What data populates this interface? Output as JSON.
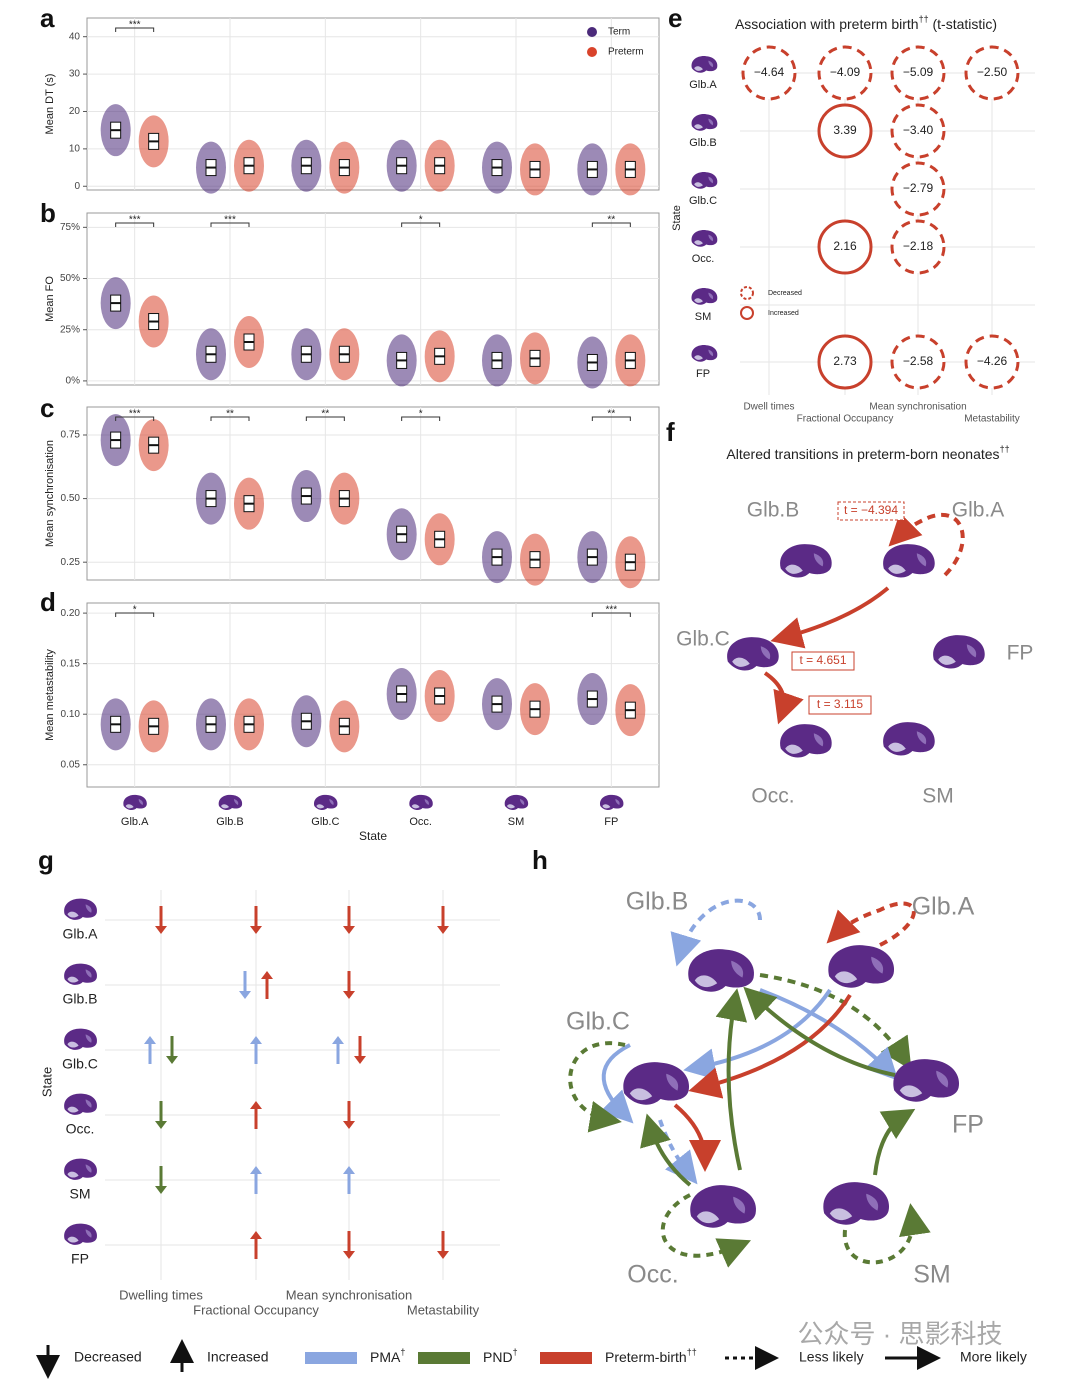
{
  "panel_letters": [
    "a",
    "b",
    "c",
    "d",
    "e",
    "f",
    "g",
    "h"
  ],
  "chart_data": [
    {
      "type": "box",
      "ylabel": "Mean DT (s)",
      "ylim": [
        -1,
        45
      ],
      "yticks": [
        0,
        10,
        20,
        30,
        40
      ],
      "series": [
        {
          "name": "Term",
          "color": "#4b2a7a",
          "values": [
            15,
            5,
            5.5,
            5.5,
            5,
            4.5
          ]
        },
        {
          "name": "Preterm",
          "color": "#d9432b",
          "values": [
            12,
            5.5,
            5,
            5.5,
            4.5,
            4.5
          ]
        }
      ],
      "significance": [
        "***",
        null,
        null,
        null,
        null,
        null
      ]
    },
    {
      "type": "box",
      "ylabel": "Mean FO",
      "ylim": [
        -2,
        82
      ],
      "yticks": [
        {
          "value": 0,
          "label": "0%"
        },
        {
          "value": 25,
          "label": "25%"
        },
        {
          "value": 50,
          "label": "50%"
        },
        {
          "value": 75,
          "label": "75%"
        }
      ],
      "series": [
        {
          "color": "#4b2a7a",
          "values": [
            38,
            13,
            13,
            10,
            10,
            9
          ]
        },
        {
          "color": "#d9432b",
          "values": [
            29,
            19,
            13,
            12,
            11,
            10
          ]
        }
      ],
      "significance": [
        "***",
        "***",
        null,
        "*",
        null,
        "**"
      ]
    },
    {
      "type": "box",
      "ylabel": "Mean synchronisation",
      "ylim": [
        0.18,
        0.86
      ],
      "yticks": [
        0.25,
        {
          "value": 0.5,
          "label": "0.50"
        },
        0.75
      ],
      "series": [
        {
          "color": "#4b2a7a",
          "values": [
            0.73,
            0.5,
            0.51,
            0.36,
            0.27,
            0.27
          ]
        },
        {
          "color": "#d9432b",
          "values": [
            0.71,
            0.48,
            0.5,
            0.34,
            0.26,
            0.25
          ]
        }
      ],
      "significance": [
        "***",
        "**",
        "**",
        "*",
        null,
        "**"
      ]
    },
    {
      "type": "box",
      "ylabel": "Mean metastability",
      "ylim": [
        0.028,
        0.21
      ],
      "yticks": [
        0.05,
        {
          "value": 0.1,
          "label": "0.10"
        },
        0.15,
        {
          "value": 0.2,
          "label": "0.20"
        }
      ],
      "categories": [
        "Glb.A",
        "Glb.B",
        "Glb.C",
        "Occ.",
        "SM",
        "FP"
      ],
      "xlabel": "State",
      "series": [
        {
          "color": "#4b2a7a",
          "values": [
            0.09,
            0.09,
            0.093,
            0.12,
            0.11,
            0.115
          ]
        },
        {
          "color": "#d9432b",
          "values": [
            0.088,
            0.09,
            0.088,
            0.118,
            0.105,
            0.104
          ]
        }
      ],
      "significance": [
        "*",
        null,
        null,
        null,
        null,
        "***"
      ]
    }
  ],
  "panel_e": {
    "title": "Association with preterm birth",
    "title_sup": "††",
    "title_suffix": " (t-statistic)",
    "ylabel": "State",
    "states": [
      "Glb.A",
      "Glb.B",
      "Glb.C",
      "Occ.",
      "SM",
      "FP"
    ],
    "measures": [
      "Dwell times",
      "Fractional Occupancy",
      "Mean synchronisation",
      "Metastability"
    ],
    "legend": [
      "Decreased",
      "Increased"
    ],
    "cells": [
      [
        {
          "value": -4.64,
          "label": "−4.64"
        },
        {
          "value": -4.09,
          "label": "−4.09"
        },
        {
          "value": -5.09,
          "label": "−5.09"
        },
        {
          "value": -2.5,
          "label": "−2.50"
        }
      ],
      [
        null,
        {
          "value": 3.39,
          "label": "3.39"
        },
        {
          "value": -3.4,
          "label": "−3.40"
        },
        null
      ],
      [
        null,
        null,
        {
          "value": -2.79,
          "label": "−2.79"
        },
        null
      ],
      [
        null,
        {
          "value": 2.16,
          "label": "2.16"
        },
        {
          "value": -2.18,
          "label": "−2.18"
        },
        null
      ],
      [
        null,
        null,
        null,
        null
      ],
      [
        null,
        {
          "value": 2.73,
          "label": "2.73"
        },
        {
          "value": -2.58,
          "label": "−2.58"
        },
        {
          "value": -4.26,
          "label": "−4.26"
        }
      ]
    ]
  },
  "panel_f": {
    "title": "Altered transitions in preterm-born neonates",
    "title_sup": "††",
    "nodes": [
      "Glb.B",
      "Glb.A",
      "Glb.C",
      "FP",
      "Occ.",
      "SM"
    ],
    "edges": [
      "t = −4.394",
      "t = 4.651",
      "t = 3.115"
    ]
  },
  "panel_g": {
    "ylabel": "State",
    "states": [
      "Glb.A",
      "Glb.B",
      "Glb.C",
      "Occ.",
      "SM",
      "FP"
    ],
    "measures": [
      "Dwelling times",
      "Fractional Occupancy",
      "Mean synchronisation",
      "Metastability"
    ],
    "arrows": [
      [
        [
          {
            "dir": "down",
            "color": "#c8402c"
          }
        ],
        [
          {
            "dir": "down",
            "color": "#c8402c"
          }
        ],
        [
          {
            "dir": "down",
            "color": "#c8402c"
          }
        ],
        [
          {
            "dir": "down",
            "color": "#c8402c"
          }
        ]
      ],
      [
        [],
        [
          {
            "dir": "down",
            "color": "#8aa6e0"
          },
          {
            "dir": "up",
            "color": "#c8402c"
          }
        ],
        [
          {
            "dir": "down",
            "color": "#c8402c"
          }
        ],
        []
      ],
      [
        [
          {
            "dir": "up",
            "color": "#8aa6e0"
          },
          {
            "dir": "down",
            "color": "#5a7a35"
          }
        ],
        [
          {
            "dir": "up",
            "color": "#8aa6e0"
          }
        ],
        [
          {
            "dir": "up",
            "color": "#8aa6e0"
          },
          {
            "dir": "down",
            "color": "#c8402c"
          }
        ],
        []
      ],
      [
        [
          {
            "dir": "down",
            "color": "#5a7a35"
          }
        ],
        [
          {
            "dir": "up",
            "color": "#c8402c"
          }
        ],
        [
          {
            "dir": "down",
            "color": "#c8402c"
          }
        ],
        []
      ],
      [
        [
          {
            "dir": "down",
            "color": "#5a7a35"
          }
        ],
        [
          {
            "dir": "up",
            "color": "#8aa6e0"
          }
        ],
        [
          {
            "dir": "up",
            "color": "#8aa6e0"
          }
        ],
        []
      ],
      [
        [],
        [
          {
            "dir": "up",
            "color": "#c8402c"
          }
        ],
        [
          {
            "dir": "down",
            "color": "#c8402c"
          }
        ],
        [
          {
            "dir": "down",
            "color": "#c8402c"
          }
        ]
      ]
    ]
  },
  "panel_h": {
    "nodes": [
      "Glb.B",
      "Glb.A",
      "Glb.C",
      "FP",
      "Occ.",
      "SM"
    ]
  },
  "legend": {
    "decreased": "Decreased",
    "increased": "Increased",
    "pma": "PMA",
    "pma_sup": "†",
    "pnd": "PND",
    "pnd_sup": "†",
    "preterm": "Preterm-birth",
    "preterm_sup": "††",
    "less": "Less likely",
    "more": "More likely",
    "pma_color": "#8aa6e0",
    "pnd_color": "#5a7a35",
    "preterm_color": "#c8402c"
  },
  "watermark": "公众号 · 思影科技"
}
